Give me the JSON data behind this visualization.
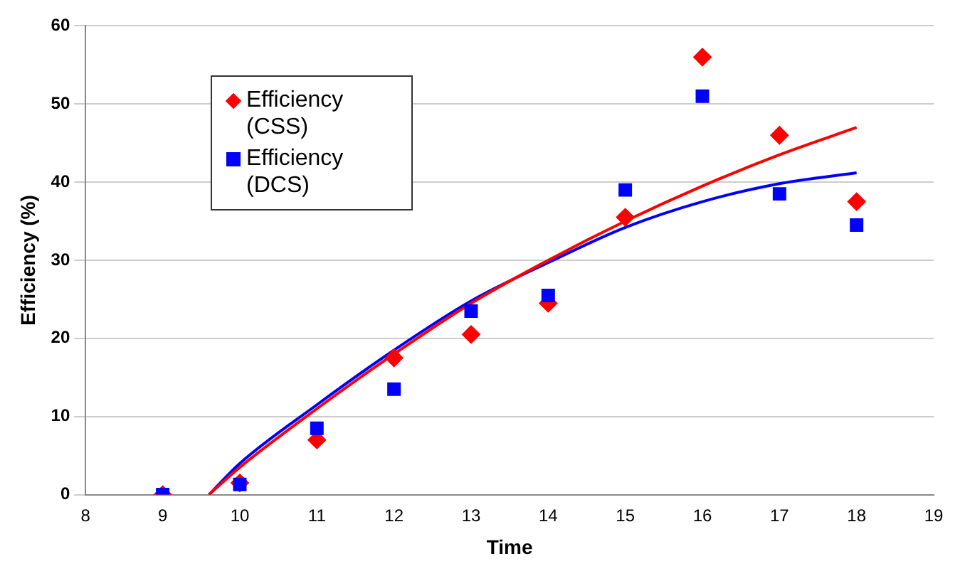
{
  "chart_data": {
    "type": "scatter",
    "xlabel": "Time",
    "ylabel": "Efficiency (%)",
    "xlim": [
      8,
      19
    ],
    "xticks": [
      8,
      9,
      10,
      11,
      12,
      13,
      14,
      15,
      16,
      17,
      18,
      19
    ],
    "ylim": [
      0,
      60
    ],
    "yticks": [
      0,
      10,
      20,
      30,
      40,
      50,
      60
    ],
    "grid": "y",
    "legend": "top left",
    "series": [
      {
        "name": "Efficiency (CSS)",
        "color": "#ff0000",
        "marker": "diamond",
        "x": [
          9,
          10,
          11,
          12,
          13,
          14,
          15,
          16,
          17,
          18
        ],
        "values": [
          0,
          1.5,
          7,
          17.5,
          20.5,
          24.5,
          35.5,
          56,
          46,
          37.5
        ]
      },
      {
        "name": "Efficiency (DCS)",
        "color": "#0000ff",
        "marker": "square",
        "x": [
          9,
          10,
          11,
          12,
          13,
          14,
          15,
          16,
          17,
          18
        ],
        "values": [
          0,
          1.3,
          8.5,
          13.5,
          23.5,
          25.5,
          39,
          51,
          38.5,
          34.5
        ]
      },
      {
        "type": "line",
        "color": "#ff0000",
        "marker": "none",
        "x": [
          9.6,
          10,
          11,
          12,
          13,
          14,
          15,
          16,
          17,
          18
        ],
        "values": [
          0,
          3.5,
          11,
          18,
          24.5,
          30,
          35,
          39.5,
          43.5,
          47
        ]
      },
      {
        "type": "line",
        "color": "#0000ff",
        "marker": "none",
        "x": [
          9.6,
          10,
          11,
          12,
          13,
          14,
          15,
          16,
          17,
          18
        ],
        "values": [
          0,
          4,
          11.5,
          18.5,
          24.8,
          29.7,
          34.2,
          37.5,
          39.8,
          41.2
        ]
      }
    ]
  }
}
